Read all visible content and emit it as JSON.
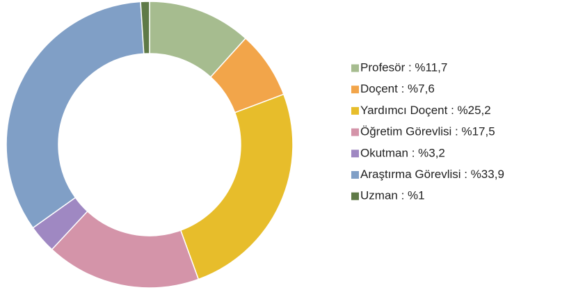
{
  "chart_data": {
    "type": "pie",
    "categories": [
      "Profesör : %11,7",
      "Doçent : %7,6",
      "Yardımcı Doçent : %25,2",
      "Öğretim Görevlisi : %17,5",
      "Okutman : %3,2",
      "Araştırma Görevlisi : %33,9",
      "Uzman : %1"
    ],
    "values": [
      11.7,
      7.6,
      25.2,
      17.5,
      3.2,
      33.9,
      1
    ],
    "colors": [
      "#a6bc8f",
      "#f2a54a",
      "#e7bd2b",
      "#d494a9",
      "#9f88c2",
      "#809fc6",
      "#5f7a47"
    ],
    "donut": true,
    "legend": "right"
  }
}
